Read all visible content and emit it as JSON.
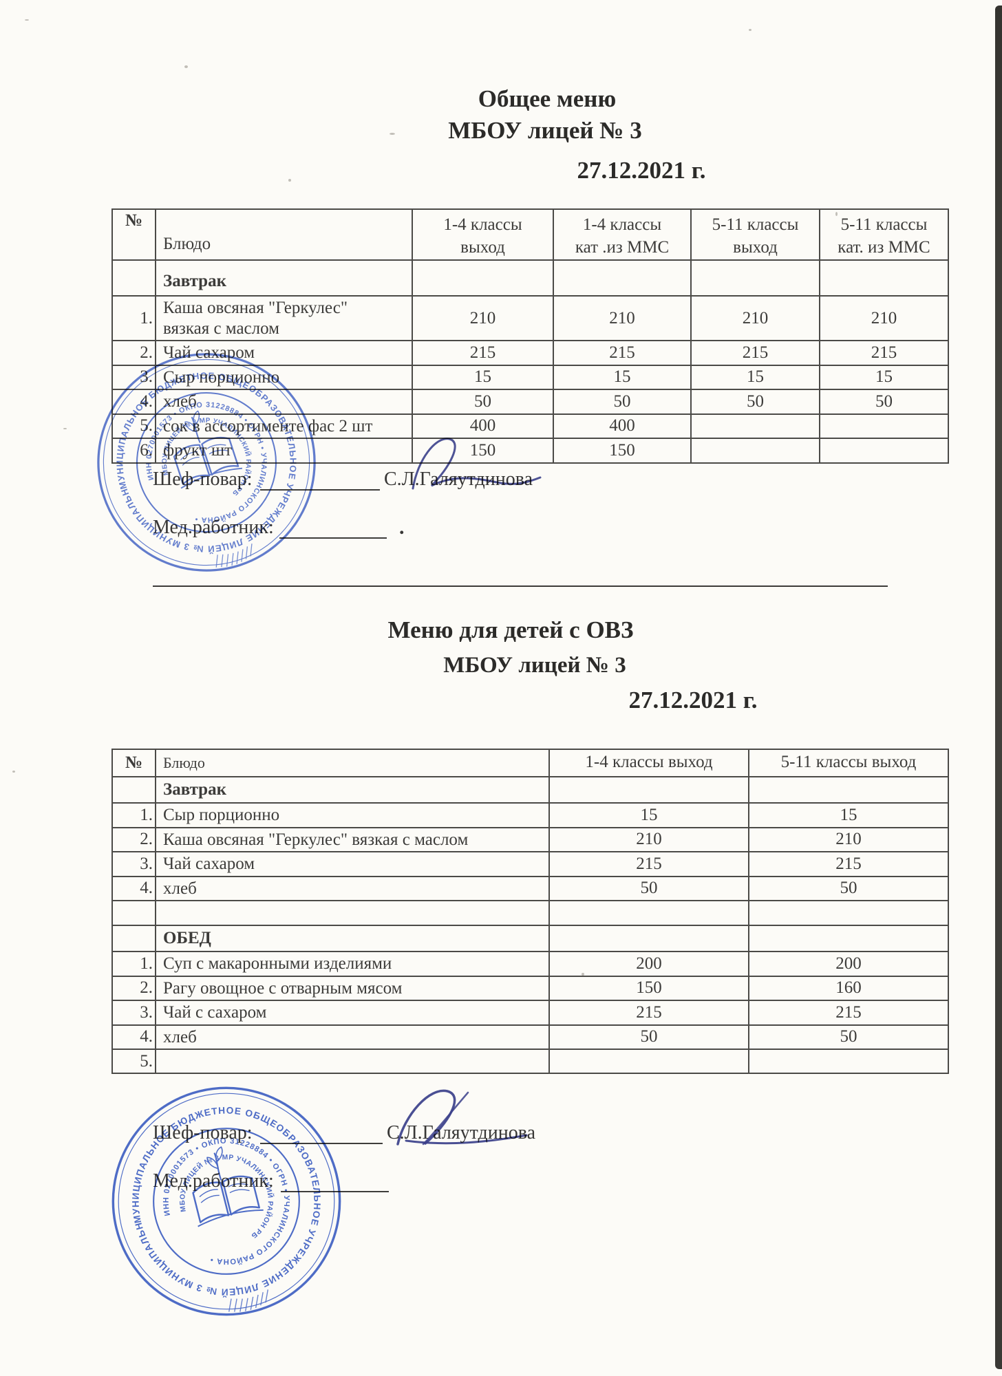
{
  "colors": {
    "stamp": "#3b5ec8",
    "signature_ink": "#3c418f",
    "text_ink": "#3a3938"
  },
  "menu1": {
    "title": "Общее меню",
    "school": "МБОУ лицей № 3",
    "date": "27.12.2021 г.",
    "table": {
      "col_headers": [
        "№",
        "Блюдо",
        "1-4 классы\nвыход",
        "1-4 классы\nкат .из ММС",
        "5-11 классы\nвыход",
        "5-11 классы\nкат. из ММС"
      ],
      "section_label": "Завтрак",
      "rows": [
        {
          "num": "1.",
          "dish": "Каша овсяная \"Геркулес\"\nвязкая с маслом",
          "values": [
            "210",
            "210",
            "210",
            "210"
          ]
        },
        {
          "num": "2.",
          "dish": "Чай сахаром",
          "values": [
            "215",
            "215",
            "215",
            "215"
          ]
        },
        {
          "num": "3.",
          "dish": "Сыр порционно",
          "values": [
            "15",
            "15",
            "15",
            "15"
          ]
        },
        {
          "num": "4.",
          "dish": "хлеб",
          "values": [
            "50",
            "50",
            "50",
            "50"
          ]
        },
        {
          "num": "5.",
          "dish": "сок в ассортименте фас 2 шт",
          "values": [
            "400",
            "400",
            "",
            ""
          ]
        },
        {
          "num": "6.",
          "dish": "фрукт  шт",
          "values": [
            "150",
            "150",
            "",
            ""
          ]
        }
      ]
    },
    "signatures": {
      "chef_label": "Шеф-повар:",
      "chef_name": "С.Л.Галяутдинова",
      "med_label": "Мед.работник:",
      "after_med_line": "."
    }
  },
  "menu2": {
    "title": "Меню для детей с ОВЗ",
    "school": "МБОУ лицей № 3",
    "date": "27.12.2021 г.",
    "table": {
      "col_headers": [
        "№",
        "Блюдо",
        "1-4 классы выход",
        "5-11 классы выход"
      ],
      "sections": [
        {
          "label": "Завтрак",
          "spacer_after": true,
          "rows": [
            {
              "num": "1.",
              "dish": "Сыр порционно",
              "values": [
                "15",
                "15"
              ]
            },
            {
              "num": "2.",
              "dish": "Каша овсяная \"Геркулес\" вязкая с маслом",
              "values": [
                "210",
                "210"
              ]
            },
            {
              "num": "3.",
              "dish": "Чай сахаром",
              "values": [
                "215",
                "215"
              ]
            },
            {
              "num": "4.",
              "dish": "хлеб",
              "values": [
                "50",
                "50"
              ]
            }
          ]
        },
        {
          "label": "ОБЕД",
          "spacer_after": false,
          "rows": [
            {
              "num": "1.",
              "dish": "Суп с макаронными изделиями",
              "values": [
                "200",
                "200"
              ]
            },
            {
              "num": "2.",
              "dish": "Рагу овощное с отварным мясом",
              "values": [
                "150",
                "160"
              ]
            },
            {
              "num": "3.",
              "dish": "Чай с сахаром",
              "values": [
                "215",
                "215"
              ]
            },
            {
              "num": "4.",
              "dish": "хлеб",
              "values": [
                "50",
                "50"
              ]
            },
            {
              "num": "5.",
              "dish": "",
              "values": [
                "",
                ""
              ]
            }
          ]
        }
      ]
    },
    "signatures": {
      "chef_label": "Шеф-повар:",
      "chef_name": "С.Л.Галяутдинова",
      "med_label": "Мед.работник:"
    }
  },
  "stamp": {
    "outer_text": "МУНИЦИПАЛЬНОЕ БЮДЖЕТНОЕ ОБЩЕОБРАЗОВАТЕЛЬНОЕ УЧРЕЖДЕНИЕ ЛИЦЕЙ № 3 МУНИЦИПАЛЬНОГО РАЙОНА УЧАЛИНСКИЙ РАЙОН РБ • ",
    "numbers_text": "ИНН 0270001573 • ОКПО 31228884 • ОГРН • УЧАЛИНСКОГО РАЙОНА • ",
    "inner_text": "МБОУ ЛИЦЕЙ № 3 МР УЧАЛИНСКИЙ РАЙОН РБ"
  }
}
